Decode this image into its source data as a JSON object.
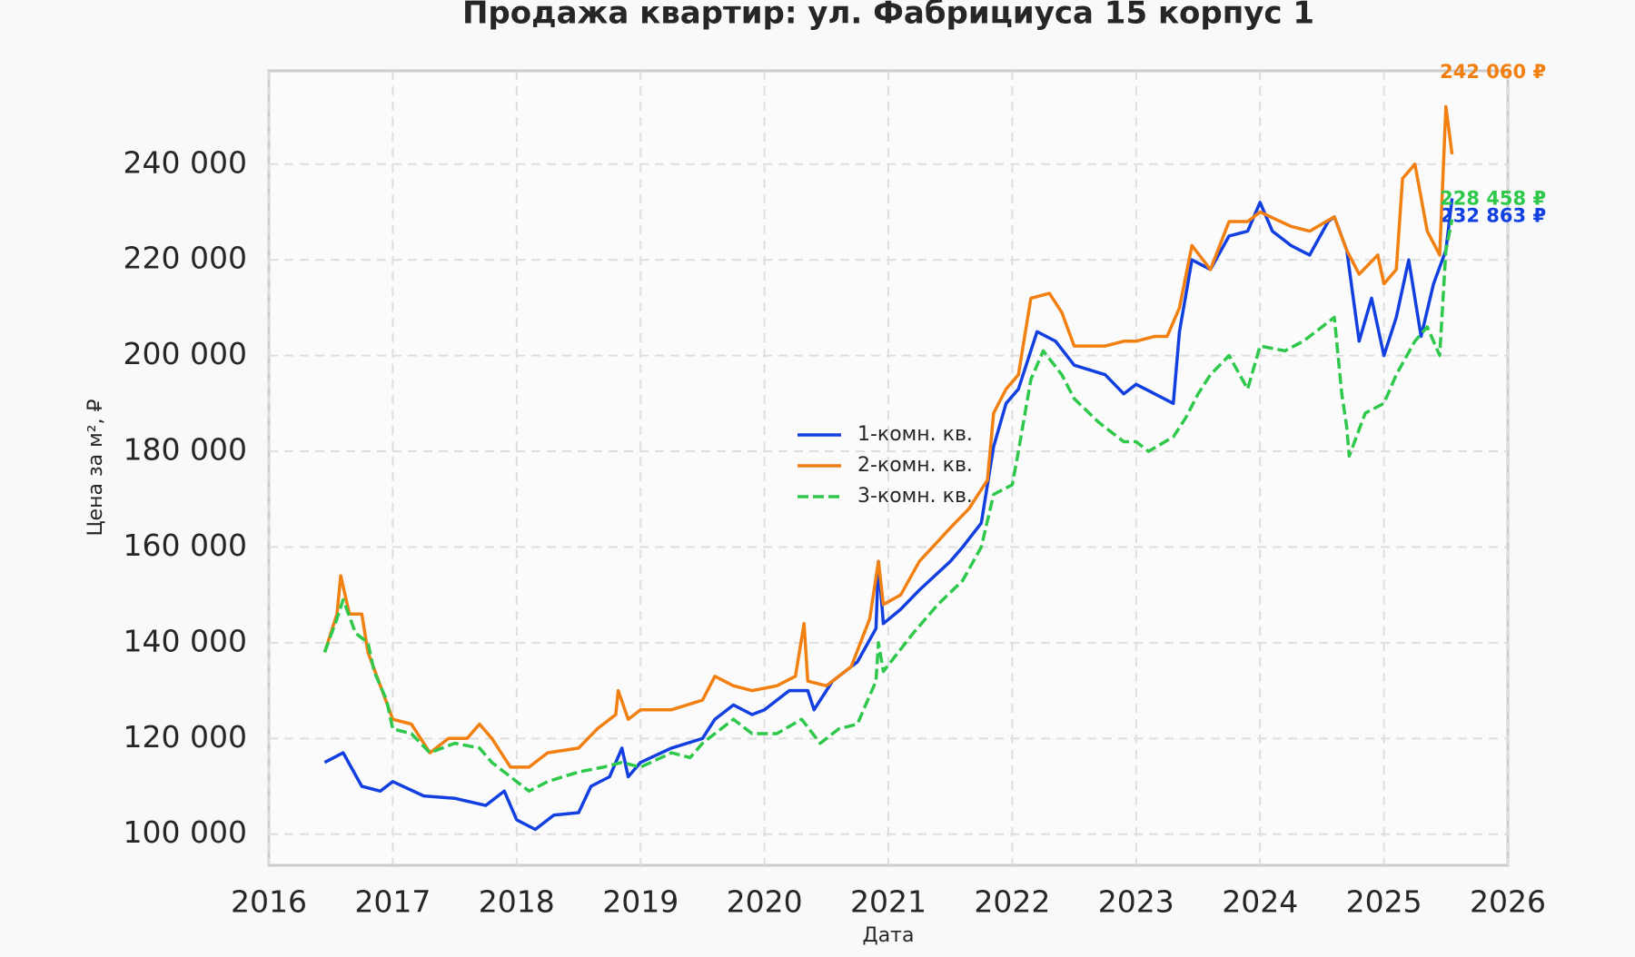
{
  "chart_data": {
    "type": "line",
    "title": "Продажа квартир: ул. Фабрициуса 15 корпус 1",
    "x_label": "Дата",
    "y_label": "Цена за м², ₽",
    "xlim": [
      2016,
      2026
    ],
    "xticks": [
      2016,
      2017,
      2018,
      2019,
      2020,
      2021,
      2022,
      2023,
      2024,
      2025,
      2026
    ],
    "ylim": [
      93500,
      259500
    ],
    "yticks": [
      {
        "value": 100000,
        "label": "100 000"
      },
      {
        "value": 120000,
        "label": "120 000"
      },
      {
        "value": 140000,
        "label": "140 000"
      },
      {
        "value": 160000,
        "label": "160 000"
      },
      {
        "value": 180000,
        "label": "180 000"
      },
      {
        "value": 200000,
        "label": "200 000"
      },
      {
        "value": 220000,
        "label": "220 000"
      },
      {
        "value": 240000,
        "label": "240 000"
      }
    ],
    "grid": true,
    "legend": "center",
    "series": [
      {
        "name": "1-комн. кв.",
        "color": "#1240e0",
        "dash": "solid",
        "end_label": "232 863 ₽",
        "x": [
          2016.45,
          2016.6,
          2016.75,
          2016.9,
          2017.0,
          2017.25,
          2017.5,
          2017.75,
          2017.9,
          2018.0,
          2018.15,
          2018.3,
          2018.5,
          2018.6,
          2018.75,
          2018.85,
          2018.9,
          2019.0,
          2019.25,
          2019.5,
          2019.6,
          2019.75,
          2019.9,
          2020.0,
          2020.2,
          2020.35,
          2020.4,
          2020.55,
          2020.75,
          2020.9,
          2020.92,
          2020.96,
          2021.1,
          2021.25,
          2021.5,
          2021.6,
          2021.75,
          2021.85,
          2021.95,
          2022.05,
          2022.2,
          2022.35,
          2022.5,
          2022.75,
          2022.9,
          2023.0,
          2023.15,
          2023.3,
          2023.35,
          2023.45,
          2023.6,
          2023.75,
          2023.9,
          2024.0,
          2024.1,
          2024.25,
          2024.4,
          2024.55,
          2024.6,
          2024.7,
          2024.8,
          2024.9,
          2025.0,
          2025.1,
          2025.2,
          2025.3,
          2025.4,
          2025.5,
          2025.55
        ],
        "values": [
          115000,
          117000,
          110000,
          109000,
          111000,
          108000,
          107500,
          106000,
          109000,
          103000,
          101000,
          104000,
          104500,
          110000,
          112000,
          118000,
          112000,
          115000,
          118000,
          120000,
          124000,
          127000,
          125000,
          126000,
          130000,
          130000,
          126000,
          132000,
          136000,
          143000,
          157000,
          144000,
          147000,
          151000,
          157000,
          160000,
          165000,
          181000,
          190000,
          193000,
          205000,
          203000,
          198000,
          196000,
          192000,
          194000,
          192000,
          190000,
          205000,
          220000,
          218000,
          225000,
          226000,
          232000,
          226000,
          223000,
          221000,
          228000,
          229000,
          222000,
          203000,
          212000,
          200000,
          208000,
          220000,
          204000,
          215000,
          222000,
          232863
        ]
      },
      {
        "name": "2-комн. кв.",
        "color": "#f28010",
        "dash": "solid",
        "end_label": "242 060 ₽",
        "x": [
          2016.45,
          2016.55,
          2016.58,
          2016.65,
          2016.75,
          2016.8,
          2016.9,
          2017.0,
          2017.15,
          2017.3,
          2017.45,
          2017.6,
          2017.7,
          2017.8,
          2017.95,
          2018.1,
          2018.25,
          2018.5,
          2018.65,
          2018.8,
          2018.82,
          2018.9,
          2019.0,
          2019.25,
          2019.5,
          2019.6,
          2019.75,
          2019.9,
          2020.1,
          2020.25,
          2020.32,
          2020.35,
          2020.5,
          2020.7,
          2020.85,
          2020.92,
          2020.96,
          2021.1,
          2021.25,
          2021.5,
          2021.65,
          2021.8,
          2021.85,
          2021.95,
          2022.05,
          2022.15,
          2022.3,
          2022.4,
          2022.5,
          2022.75,
          2022.9,
          2023.0,
          2023.15,
          2023.25,
          2023.35,
          2023.45,
          2023.6,
          2023.75,
          2023.9,
          2024.0,
          2024.25,
          2024.4,
          2024.6,
          2024.7,
          2024.8,
          2024.95,
          2025.0,
          2025.1,
          2025.15,
          2025.25,
          2025.35,
          2025.45,
          2025.5,
          2025.55
        ],
        "values": [
          138000,
          146000,
          154000,
          146000,
          146000,
          138000,
          131000,
          124000,
          123000,
          117000,
          120000,
          120000,
          123000,
          120000,
          114000,
          114000,
          117000,
          118000,
          122000,
          125000,
          130000,
          124000,
          126000,
          126000,
          128000,
          133000,
          131000,
          130000,
          131000,
          133000,
          144000,
          132000,
          131000,
          135000,
          145000,
          157000,
          148000,
          150000,
          157000,
          164000,
          168000,
          174000,
          188000,
          193000,
          196000,
          212000,
          213000,
          209000,
          202000,
          202000,
          203000,
          203000,
          204000,
          204000,
          210000,
          223000,
          218000,
          228000,
          228000,
          230000,
          227000,
          226000,
          229000,
          222000,
          217000,
          221000,
          215000,
          218000,
          237000,
          240000,
          226000,
          221000,
          252000,
          242060
        ]
      },
      {
        "name": "3-комн. кв.",
        "color": "#2ec84a",
        "dash": "dashed",
        "end_label": "228 458 ₽",
        "x": [
          2016.45,
          2016.55,
          2016.6,
          2016.7,
          2016.8,
          2016.85,
          2016.95,
          2017.0,
          2017.15,
          2017.3,
          2017.5,
          2017.7,
          2017.8,
          2017.95,
          2018.1,
          2018.25,
          2018.5,
          2018.7,
          2018.85,
          2019.0,
          2019.25,
          2019.4,
          2019.5,
          2019.6,
          2019.75,
          2019.9,
          2020.1,
          2020.3,
          2020.45,
          2020.6,
          2020.75,
          2020.9,
          2020.92,
          2020.96,
          2021.2,
          2021.4,
          2021.6,
          2021.75,
          2021.85,
          2022.0,
          2022.05,
          2022.15,
          2022.25,
          2022.4,
          2022.5,
          2022.7,
          2022.9,
          2023.0,
          2023.1,
          2023.3,
          2023.4,
          2023.5,
          2023.6,
          2023.75,
          2023.9,
          2024.0,
          2024.2,
          2024.35,
          2024.5,
          2024.6,
          2024.66,
          2024.7,
          2024.72,
          2024.85,
          2025.0,
          2025.1,
          2025.25,
          2025.35,
          2025.45,
          2025.5,
          2025.55
        ],
        "values": [
          138000,
          145000,
          149000,
          142000,
          140000,
          134000,
          128000,
          122000,
          121000,
          117000,
          119000,
          118000,
          115000,
          112000,
          109000,
          111000,
          113000,
          114000,
          115000,
          114000,
          117000,
          116000,
          119000,
          121000,
          124000,
          121000,
          121000,
          124000,
          119000,
          122000,
          123000,
          132000,
          140000,
          134000,
          142000,
          148000,
          153000,
          160000,
          171000,
          173000,
          180000,
          195000,
          201000,
          196000,
          191000,
          186000,
          182000,
          182000,
          180000,
          183000,
          187000,
          192000,
          196000,
          200000,
          193000,
          202000,
          201000,
          203000,
          206000,
          208000,
          192000,
          185000,
          179000,
          188000,
          190000,
          196000,
          203000,
          206000,
          200000,
          222000,
          228458
        ]
      }
    ]
  }
}
